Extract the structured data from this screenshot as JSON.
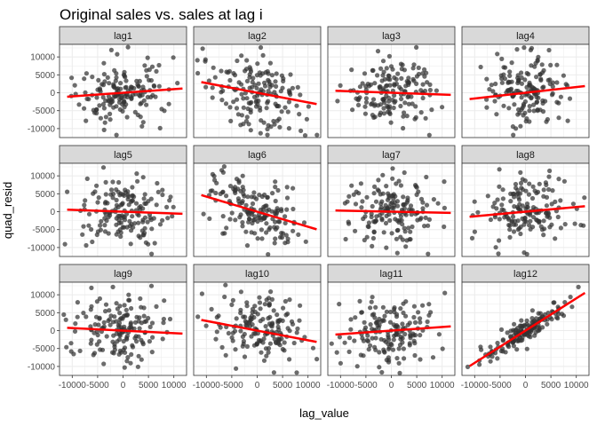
{
  "chart_data": {
    "type": "scatter",
    "title": "Original sales vs. sales at lag i",
    "xlabel": "lag_value",
    "ylabel": "quad_resid",
    "xlim": [
      -12500,
      12500
    ],
    "ylim": [
      -12500,
      13500
    ],
    "x_ticks": [
      -10000,
      -5000,
      0,
      5000,
      10000
    ],
    "x_tick_labels": [
      "-10000",
      "-5000",
      "0",
      "5000",
      "10000"
    ],
    "y_ticks": [
      -10000,
      -5000,
      0,
      5000,
      10000
    ],
    "y_tick_labels": [
      "-10000",
      "-5000",
      "0",
      "5000",
      "10000"
    ],
    "point_color": "#333333",
    "line_color": "#ff0000",
    "grid": true,
    "panels": [
      {
        "label": "lag1",
        "slope": 0.1,
        "intercept": 0
      },
      {
        "label": "lag2",
        "slope": -0.27,
        "intercept": 0
      },
      {
        "label": "lag3",
        "slope": -0.05,
        "intercept": 0
      },
      {
        "label": "lag4",
        "slope": 0.16,
        "intercept": 0
      },
      {
        "label": "lag5",
        "slope": -0.05,
        "intercept": 0
      },
      {
        "label": "lag6",
        "slope": -0.42,
        "intercept": 0
      },
      {
        "label": "lag7",
        "slope": -0.03,
        "intercept": 0
      },
      {
        "label": "lag8",
        "slope": 0.13,
        "intercept": 0
      },
      {
        "label": "lag9",
        "slope": -0.07,
        "intercept": 0
      },
      {
        "label": "lag10",
        "slope": -0.27,
        "intercept": 0
      },
      {
        "label": "lag11",
        "slope": 0.1,
        "intercept": 0
      },
      {
        "label": "lag12",
        "slope": 0.9,
        "intercept": 0
      }
    ]
  }
}
